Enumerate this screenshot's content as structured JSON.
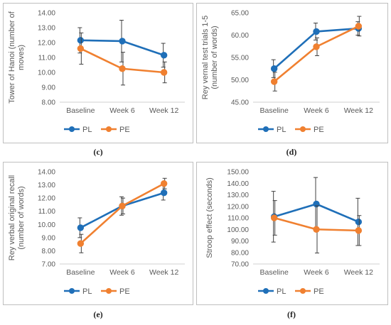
{
  "colors": {
    "PL": "#1f6fb8",
    "PE": "#f08030",
    "axis": "#d0d0d0",
    "text": "#595959",
    "frame": "#bfbfbf",
    "errorbar": "#404040"
  },
  "captions": [
    "(c)",
    "(d)",
    "(e)",
    "(f)"
  ],
  "chart_data": [
    {
      "type": "line",
      "ylabel": "Tower of Hanoi (number of moves)",
      "ylabel_lines": [
        "Tower of Hanoi (number of",
        "moves)"
      ],
      "categories": [
        "Baseline",
        "Week 6",
        "Week 12"
      ],
      "ylim": [
        8.0,
        14.0
      ],
      "ystep": 1.0,
      "yticks": [
        "8.00",
        "9.00",
        "10.00",
        "11.00",
        "12.00",
        "13.00",
        "14.00"
      ],
      "legend_position": "bottom",
      "series": [
        {
          "name": "PL",
          "values": [
            12.15,
            12.1,
            11.15
          ],
          "err": [
            0.85,
            1.4,
            0.8
          ]
        },
        {
          "name": "PE",
          "values": [
            11.6,
            10.25,
            10.0
          ],
          "err": [
            1.05,
            1.1,
            0.7
          ]
        }
      ]
    },
    {
      "type": "line",
      "ylabel": "Rey vernal test trials 1-5 (number of words)",
      "ylabel_lines": [
        "Rey vernal test trials 1-5",
        "(number of words)"
      ],
      "categories": [
        "Baseline",
        "Week 6",
        "Week 12"
      ],
      "ylim": [
        45.0,
        65.0
      ],
      "ystep": 5.0,
      "yticks": [
        "45.00",
        "50.00",
        "55.00",
        "60.00",
        "65.00"
      ],
      "legend_position": "bottom",
      "series": [
        {
          "name": "PL",
          "values": [
            52.5,
            60.8,
            61.5
          ],
          "err": [
            2.0,
            1.9,
            1.5
          ]
        },
        {
          "name": "PE",
          "values": [
            49.6,
            57.4,
            62.0
          ],
          "err": [
            2.1,
            2.0,
            2.2
          ]
        }
      ]
    },
    {
      "type": "line",
      "ylabel": "Rey verbal original recall (number of words)",
      "ylabel_lines": [
        "Rey verbal original recall",
        "(number of words)"
      ],
      "categories": [
        "Baseline",
        "Week 6",
        "Week 12"
      ],
      "ylim": [
        7.0,
        14.0
      ],
      "ystep": 1.0,
      "yticks": [
        "7.00",
        "8.00",
        "9.00",
        "10.00",
        "11.00",
        "12.00",
        "13.00",
        "14.00"
      ],
      "legend_position": "bottom",
      "series": [
        {
          "name": "PL",
          "values": [
            9.75,
            11.4,
            12.4
          ],
          "err": [
            0.75,
            0.7,
            0.55
          ]
        },
        {
          "name": "PE",
          "values": [
            8.55,
            11.4,
            13.1
          ],
          "err": [
            0.7,
            0.6,
            0.4
          ]
        }
      ]
    },
    {
      "type": "line",
      "ylabel": "Stroop effect (seconds)",
      "ylabel_lines": [
        "Stroop effect (seconds)"
      ],
      "categories": [
        "Baseline",
        "Week 6",
        "Week 12"
      ],
      "ylim": [
        70.0,
        150.0
      ],
      "ystep": 10.0,
      "yticks": [
        "70.00",
        "80.00",
        "90.00",
        "100.00",
        "110.00",
        "120.00",
        "130.00",
        "140.00",
        "150.00"
      ],
      "legend_position": "bottom",
      "series": [
        {
          "name": "PL",
          "values": [
            111.0,
            122.0,
            106.5
          ],
          "err": [
            22.0,
            23.0,
            20.5
          ]
        },
        {
          "name": "PE",
          "values": [
            110.0,
            100.0,
            99.0
          ],
          "err": [
            15.0,
            20.5,
            13.0
          ]
        }
      ]
    }
  ]
}
